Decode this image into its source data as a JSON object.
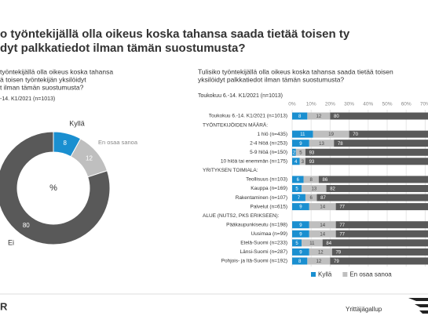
{
  "header": {
    "title_lines": [
      "o työntekijällä olla oikeus koska tahansa saada tietää toisen ty",
      "dyt palkkatiedot ilman tämän suostumusta?"
    ]
  },
  "chart_data": [
    {
      "type": "pie",
      "title_lines": [
        "työntekijällä olla oikeus koska tahansa",
        "ä toisen työntekijän yksilöidyt",
        "t ilman tämän suostumusta?"
      ],
      "subtitle": "-14. K1/2021 (n=1013)",
      "center_label": "%",
      "categories": [
        "Kyllä",
        "En osaa sanoa",
        "Ei"
      ],
      "values": [
        8,
        12,
        80
      ],
      "colors": [
        "#1a8fd0",
        "#bfbfbf",
        "#595959"
      ]
    },
    {
      "type": "stacked-barh",
      "title_lines": [
        "Tulisiko työntekijällä olla oikeus koska tahansa saada tietää toisen",
        "yksilöidyt palkkatiedot ilman tämän suostumusta?"
      ],
      "subtitle": "Toukokuu 6.-14. K1/2021 (n=1013)",
      "categories": [
        "Toukokuu 6.-14. K1/2021 (n=1013)",
        "TYÖNTEKIJÖIDEN MÄÄRÄ:",
        "1 hlö (n=435)",
        "2-4 hlöä (n=253)",
        "5-9 hlöä (n=150)",
        "10 hlöä tai enemmän (n=175)",
        "YRITYKSEN TOIMIALA:",
        "Teollisuus (n=103)",
        "Kauppa (n=169)",
        "Rakentaminen (n=107)",
        "Palvelut (n=615)",
        "ALUE (NUTS2, PKS ERIKSEEN):",
        "Pääkaupunkiseutu (n=198)",
        "Uusimaa (n=99)",
        "Etelä-Suomi (n=233)",
        "Länsi-Suomi (n=287)",
        "Pohjois- ja Itä-Suomi (n=192)"
      ],
      "series": [
        {
          "name": "Kyllä",
          "color": "#1a8fd0",
          "values": [
            8,
            null,
            11,
            9,
            2,
            4,
            null,
            6,
            5,
            7,
            9,
            null,
            9,
            9,
            5,
            9,
            8
          ]
        },
        {
          "name": "En osaa sanoa",
          "color": "#bfbfbf",
          "values": [
            12,
            null,
            19,
            13,
            5,
            3,
            null,
            8,
            13,
            6,
            14,
            null,
            14,
            14,
            11,
            12,
            12
          ]
        },
        {
          "color": "#595959",
          "values": [
            80,
            null,
            70,
            78,
            93,
            93,
            null,
            86,
            82,
            87,
            77,
            null,
            77,
            77,
            84,
            79,
            79
          ]
        }
      ],
      "xlim": [
        0,
        100
      ],
      "xticks": [
        {
          "value": 0,
          "label": "0%"
        },
        {
          "value": 10,
          "label": "10%"
        },
        {
          "value": 20,
          "label": "20%"
        },
        {
          "value": 30,
          "label": "30%"
        },
        {
          "value": 40,
          "label": "40%"
        },
        {
          "value": 50,
          "label": "50%"
        },
        {
          "value": 60,
          "label": "60%"
        },
        {
          "value": 70,
          "label": "70%"
        }
      ],
      "grid": true
    }
  ],
  "footer": {
    "left": "R",
    "right": "Yrittäjägallup"
  }
}
